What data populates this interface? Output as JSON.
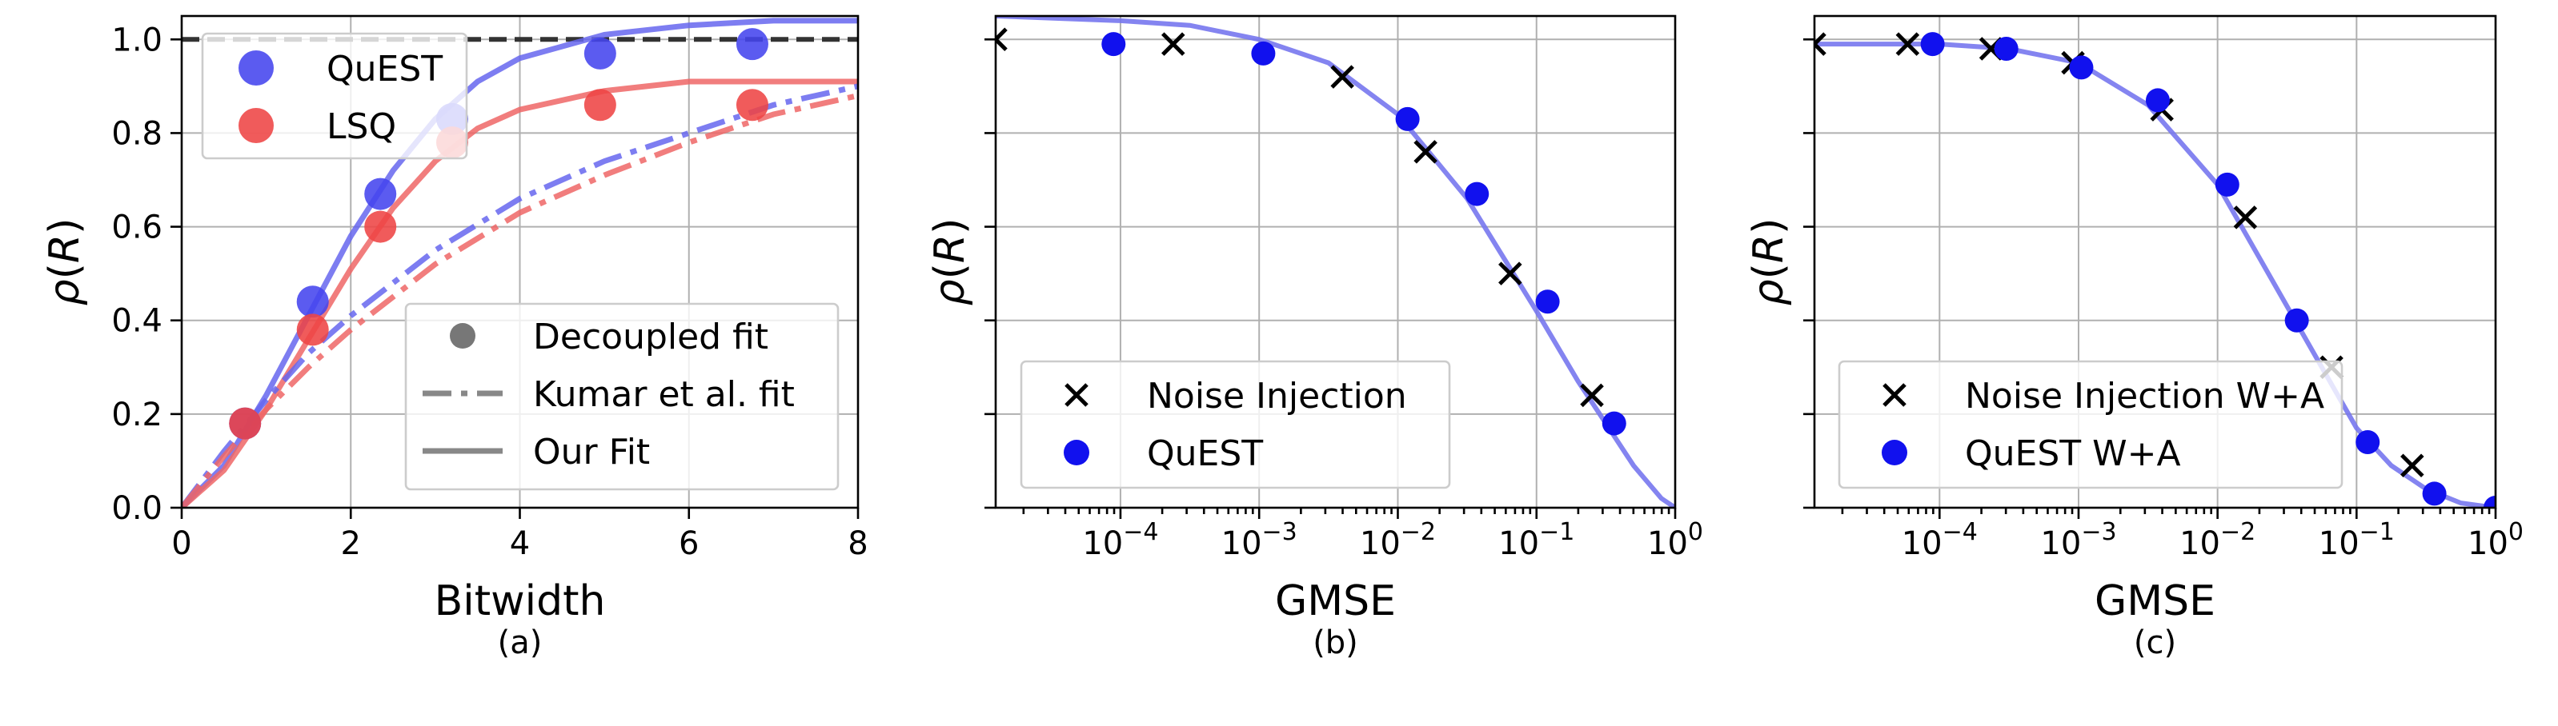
{
  "chart_data": [
    {
      "id": "a",
      "type": "scatter",
      "caption": "(a)",
      "xlabel": "Bitwidth",
      "ylabel": "ρ(R)",
      "xlim": [
        0,
        8
      ],
      "ylim": [
        0,
        1.05
      ],
      "xticks": [
        0,
        2,
        4,
        6,
        8
      ],
      "xtick_labels": [
        "0",
        "2",
        "4",
        "6",
        "8"
      ],
      "yticks": [
        0,
        0.2,
        0.4,
        0.6,
        0.8,
        1.0
      ],
      "ytick_labels": [
        "0.0",
        "0.2",
        "0.4",
        "0.6",
        "0.8",
        "1.0"
      ],
      "reference_line_y": 1.0,
      "series": [
        {
          "name": "QuEST",
          "color": "#4444ee",
          "x": [
            0.75,
            1.55,
            2.35,
            3.2,
            4.95,
            6.75
          ],
          "y": [
            0.18,
            0.44,
            0.67,
            0.83,
            0.97,
            0.99
          ]
        },
        {
          "name": "LSQ",
          "color": "#ee4444",
          "x": [
            0.75,
            1.55,
            2.35,
            3.2,
            4.95,
            6.75
          ],
          "y": [
            0.18,
            0.38,
            0.6,
            0.78,
            0.86,
            0.86
          ]
        }
      ],
      "fits": [
        {
          "series": "QuEST",
          "style": "solid",
          "color": "#6666ee",
          "x": [
            0,
            0.5,
            1,
            1.5,
            2,
            2.5,
            3,
            3.5,
            4,
            5,
            6,
            7,
            8
          ],
          "y": [
            0,
            0.09,
            0.24,
            0.41,
            0.58,
            0.72,
            0.83,
            0.91,
            0.96,
            1.01,
            1.03,
            1.04,
            1.04
          ]
        },
        {
          "series": "LSQ",
          "style": "solid",
          "color": "#ee6666",
          "x": [
            0,
            0.5,
            1,
            1.5,
            2,
            2.5,
            3,
            3.5,
            4,
            5,
            6,
            7,
            8
          ],
          "y": [
            0,
            0.08,
            0.21,
            0.36,
            0.51,
            0.64,
            0.74,
            0.81,
            0.85,
            0.89,
            0.91,
            0.91,
            0.91
          ]
        },
        {
          "series": "QuEST",
          "style": "dashdot",
          "color": "#6666ee",
          "x": [
            0,
            0.5,
            1,
            1.5,
            2,
            3,
            4,
            5,
            6,
            7,
            8
          ],
          "y": [
            0,
            0.12,
            0.23,
            0.33,
            0.41,
            0.55,
            0.66,
            0.74,
            0.8,
            0.86,
            0.9
          ]
        },
        {
          "series": "LSQ",
          "style": "dashdot",
          "color": "#ee6666",
          "x": [
            0,
            0.5,
            1,
            1.5,
            2,
            3,
            4,
            5,
            6,
            7,
            8
          ],
          "y": [
            0,
            0.11,
            0.21,
            0.3,
            0.38,
            0.52,
            0.63,
            0.71,
            0.78,
            0.84,
            0.88
          ]
        }
      ],
      "legend_series": [
        {
          "label": "QuEST",
          "color": "#4444ee"
        },
        {
          "label": "LSQ",
          "color": "#ee4444"
        }
      ],
      "legend_style": [
        {
          "label": "Decoupled fit",
          "marker": "circle"
        },
        {
          "label": "Kumar et al. fit",
          "marker": "dashdot"
        },
        {
          "label": "Our Fit",
          "marker": "solid"
        }
      ]
    },
    {
      "id": "b",
      "type": "scatter",
      "caption": "(b)",
      "xlabel": "GMSE",
      "ylabel": "ρ(R)",
      "xscale": "log",
      "xlim_exp": [
        -4.9,
        0
      ],
      "ylim": [
        0,
        1.05
      ],
      "xticks_exp": [
        -4,
        -3,
        -2,
        -1,
        0
      ],
      "xtick_labels": [
        "10",
        "10",
        "10",
        "10",
        "10"
      ],
      "xtick_sups": [
        "−4",
        "−3",
        "−2",
        "−1",
        "0"
      ],
      "yticks": [
        0,
        0.2,
        0.4,
        0.6,
        0.8,
        1.0
      ],
      "series": [
        {
          "name": "Noise Injection",
          "marker": "x",
          "color": "#000000",
          "x_exp": [
            -4.9,
            -3.62,
            -2.4,
            -1.8,
            -1.19,
            -0.6
          ],
          "y": [
            1.0,
            0.99,
            0.92,
            0.76,
            0.5,
            0.24
          ]
        },
        {
          "name": "QuEST",
          "marker": "circle",
          "color": "#1111ee",
          "x_exp": [
            -4.05,
            -2.97,
            -1.93,
            -1.43,
            -0.92,
            -0.44
          ],
          "y": [
            0.99,
            0.97,
            0.83,
            0.67,
            0.44,
            0.18
          ]
        }
      ],
      "fit": {
        "color": "#7777ee",
        "x_exp": [
          -4.9,
          -4,
          -3.5,
          -3,
          -2.5,
          -2,
          -1.5,
          -1,
          -0.7,
          -0.5,
          -0.3,
          -0.1,
          0
        ],
        "y": [
          1.05,
          1.04,
          1.03,
          1.0,
          0.95,
          0.84,
          0.66,
          0.42,
          0.27,
          0.18,
          0.09,
          0.02,
          0
        ]
      },
      "legend": [
        {
          "label": "Noise Injection",
          "marker": "x"
        },
        {
          "label": "QuEST",
          "marker": "circle"
        }
      ]
    },
    {
      "id": "c",
      "type": "scatter",
      "caption": "(c)",
      "xlabel": "GMSE",
      "ylabel": "ρ(R)",
      "xscale": "log",
      "xlim_exp": [
        -4.9,
        0
      ],
      "ylim": [
        0,
        1.05
      ],
      "xticks_exp": [
        -4,
        -3,
        -2,
        -1,
        0
      ],
      "xtick_labels": [
        "10",
        "10",
        "10",
        "10",
        "10"
      ],
      "xtick_sups": [
        "−4",
        "−3",
        "−2",
        "−1",
        "0"
      ],
      "yticks": [
        0,
        0.2,
        0.4,
        0.6,
        0.8,
        1.0
      ],
      "series": [
        {
          "name": "Noise Injection W+A",
          "marker": "x",
          "color": "#000000",
          "x_exp": [
            -4.9,
            -4.23,
            -3.63,
            -3.04,
            -2.4,
            -1.8,
            -1.18,
            -0.6
          ],
          "y": [
            0.99,
            0.99,
            0.98,
            0.95,
            0.85,
            0.62,
            0.3,
            0.09
          ]
        },
        {
          "name": "QuEST W+A",
          "marker": "circle",
          "color": "#1111ee",
          "x_exp": [
            -4.05,
            -3.52,
            -2.98,
            -2.43,
            -1.93,
            -1.43,
            -0.92,
            -0.44,
            0
          ],
          "y": [
            0.99,
            0.98,
            0.94,
            0.87,
            0.69,
            0.4,
            0.14,
            0.03,
            0.0
          ]
        }
      ],
      "fit": {
        "color": "#7777ee",
        "x_exp": [
          -4.9,
          -4.5,
          -4,
          -3.5,
          -3,
          -2.5,
          -2,
          -1.5,
          -1,
          -0.75,
          -0.5,
          -0.25,
          0
        ],
        "y": [
          0.99,
          0.99,
          0.99,
          0.98,
          0.95,
          0.86,
          0.69,
          0.43,
          0.17,
          0.09,
          0.04,
          0.01,
          0
        ]
      },
      "legend": [
        {
          "label": "Noise Injection W+A",
          "marker": "x"
        },
        {
          "label": "QuEST W+A",
          "marker": "circle"
        }
      ]
    }
  ]
}
